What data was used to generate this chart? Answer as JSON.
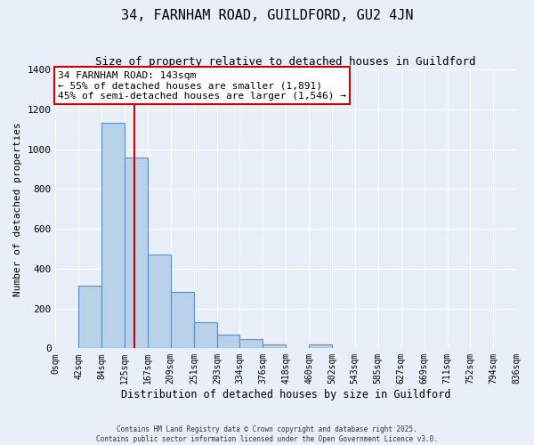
{
  "title": "34, FARNHAM ROAD, GUILDFORD, GU2 4JN",
  "subtitle": "Size of property relative to detached houses in Guildford",
  "xlabel": "Distribution of detached houses by size in Guildford",
  "ylabel": "Number of detached properties",
  "bin_labels": [
    "0sqm",
    "42sqm",
    "84sqm",
    "125sqm",
    "167sqm",
    "209sqm",
    "251sqm",
    "293sqm",
    "334sqm",
    "376sqm",
    "418sqm",
    "460sqm",
    "502sqm",
    "543sqm",
    "585sqm",
    "627sqm",
    "669sqm",
    "711sqm",
    "752sqm",
    "794sqm",
    "836sqm"
  ],
  "bar_values": [
    0,
    315,
    1130,
    960,
    470,
    285,
    130,
    68,
    45,
    20,
    0,
    20,
    0,
    0,
    0,
    0,
    0,
    0,
    0,
    0
  ],
  "bar_color": "#b8d0e8",
  "bar_edge_color": "#6090c0",
  "background_color": "#e8eff8",
  "grid_color": "#ffffff",
  "property_line_x": 143,
  "property_line_color": "#cc0000",
  "annotation_text_line1": "34 FARNHAM ROAD: 143sqm",
  "annotation_text_line2": "← 55% of detached houses are smaller (1,891)",
  "annotation_text_line3": "45% of semi-detached houses are larger (1,546) →",
  "annotation_box_color": "#ffffff",
  "annotation_box_edge": "#cc0000",
  "ylim": [
    0,
    1400
  ],
  "yticks": [
    0,
    200,
    400,
    600,
    800,
    1000,
    1200,
    1400
  ],
  "footer_line1": "Contains HM Land Registry data © Crown copyright and database right 2025.",
  "footer_line2": "Contains public sector information licensed under the Open Government Licence v3.0.",
  "bin_edges": [
    0,
    42,
    84,
    125,
    167,
    209,
    251,
    293,
    334,
    376,
    418,
    460,
    502,
    543,
    585,
    627,
    669,
    711,
    752,
    794,
    836
  ]
}
